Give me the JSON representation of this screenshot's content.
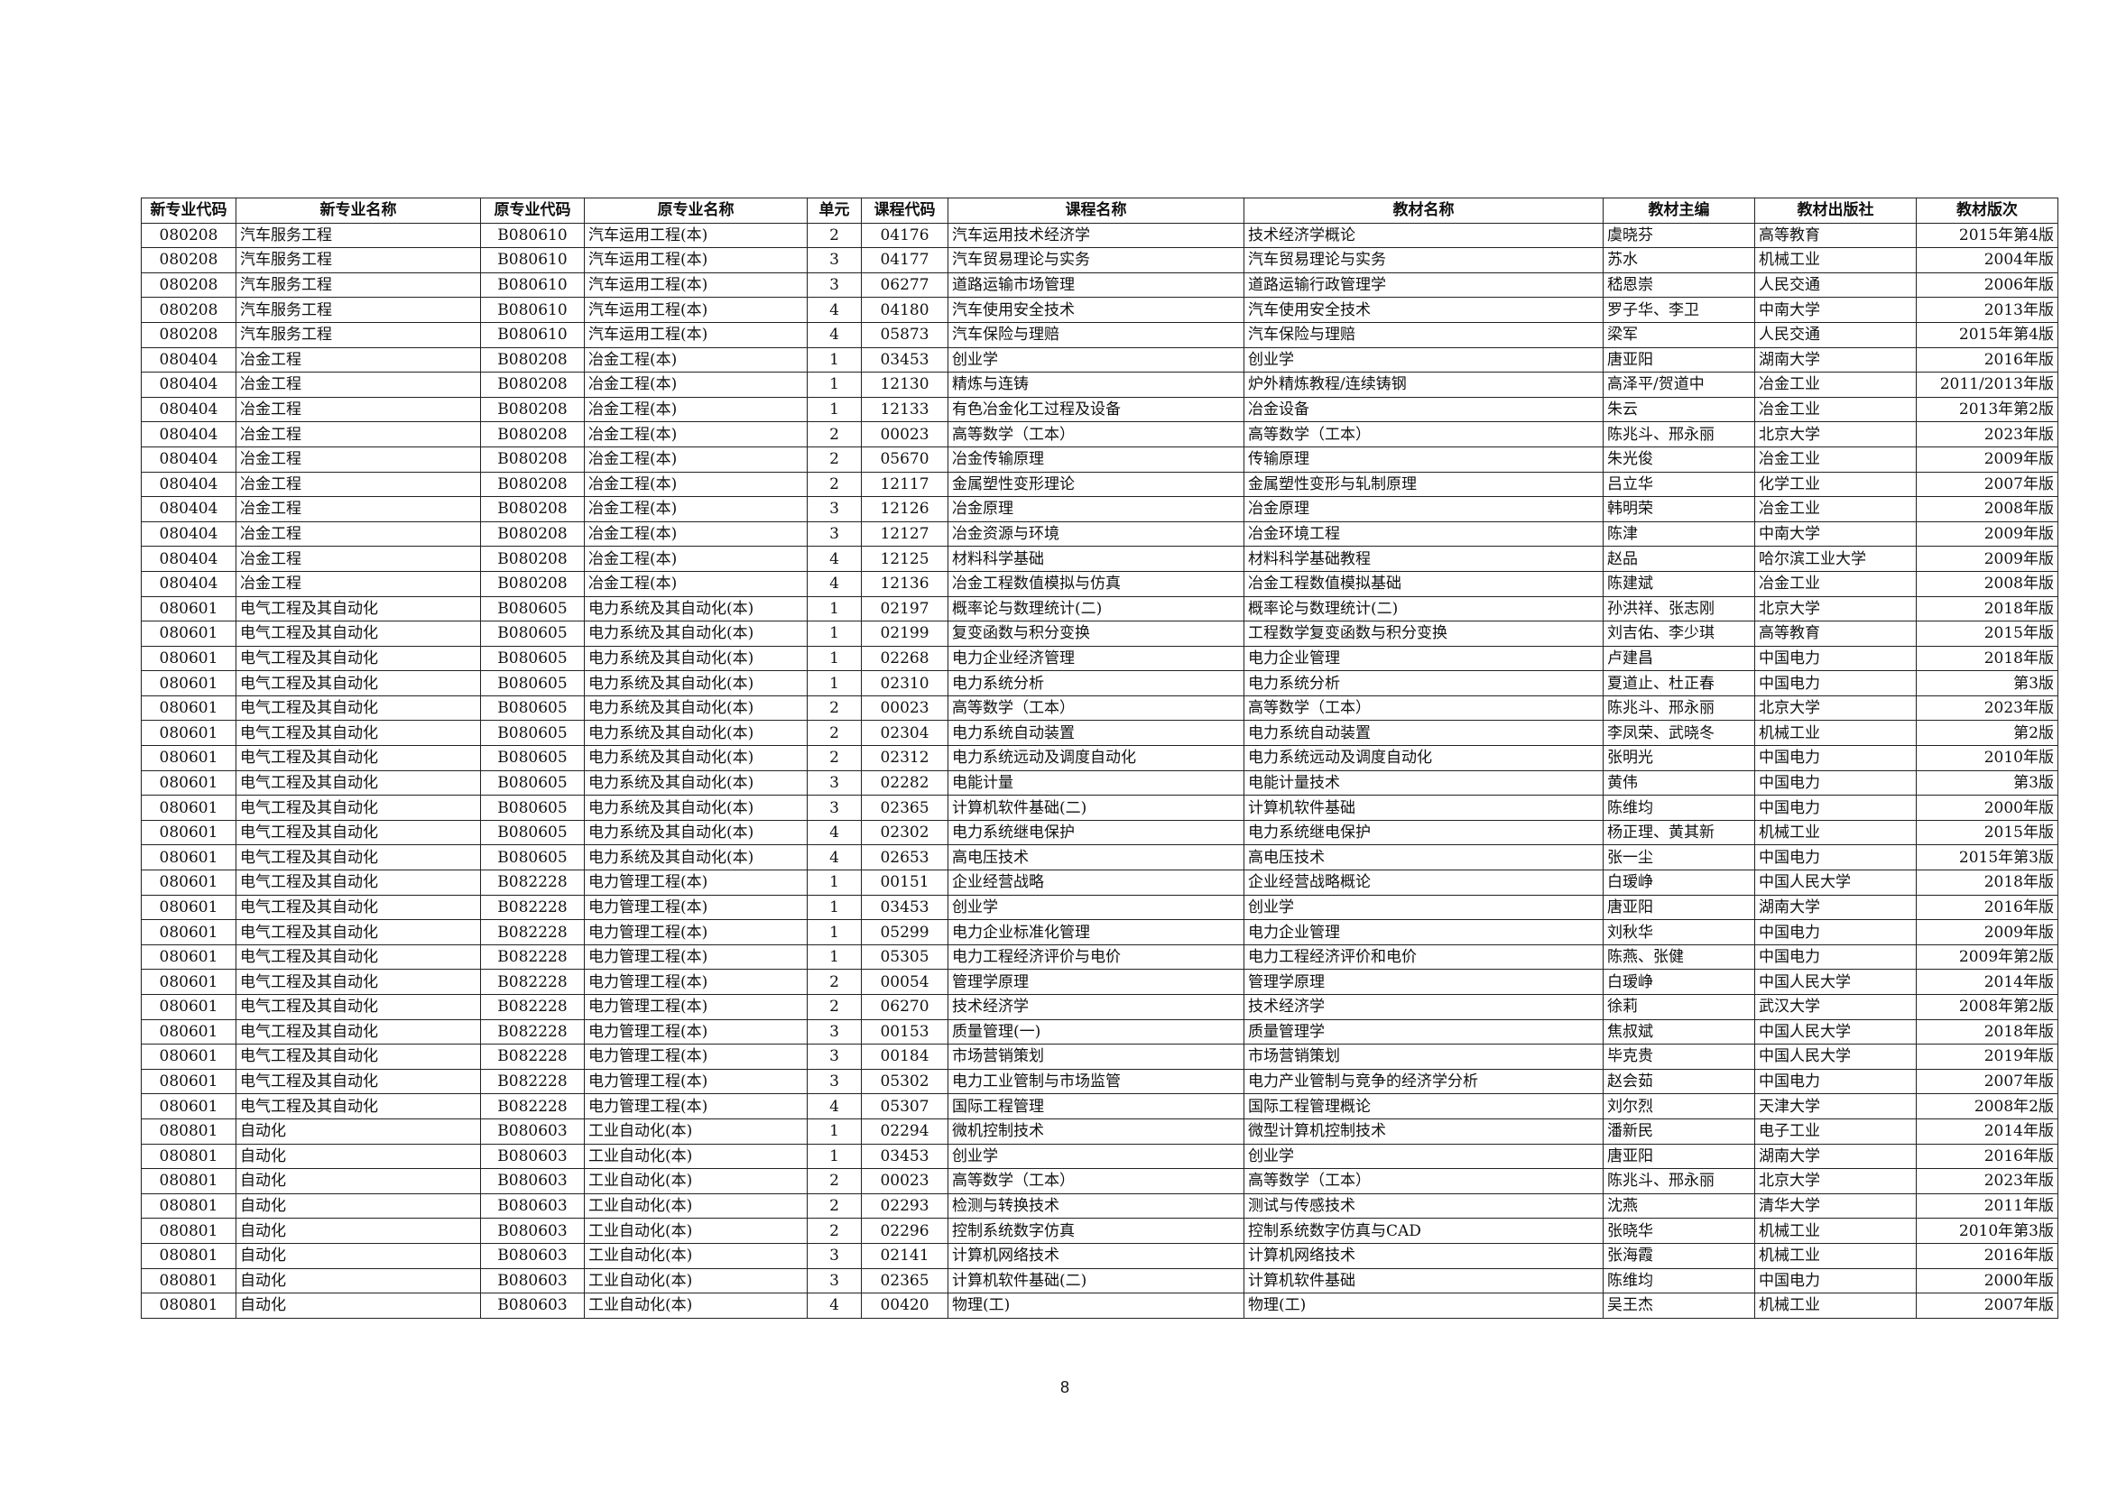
{
  "table": {
    "header": [
      "新专业代码",
      "新专业名称",
      "原专业代码",
      "原专业名称",
      "单元",
      "课程代码",
      "课程名称",
      "教材名称",
      "教材主编",
      "教材出版社",
      "教材版次"
    ],
    "rows": [
      [
        "080208",
        "汽车服务工程",
        "B080610",
        "汽车运用工程(本)",
        "2",
        "04176",
        "汽车运用技术经济学",
        "技术经济学概论",
        "虞晓芬",
        "高等教育",
        "2015年第4版"
      ],
      [
        "080208",
        "汽车服务工程",
        "B080610",
        "汽车运用工程(本)",
        "3",
        "04177",
        "汽车贸易理论与实务",
        "汽车贸易理论与实务",
        "苏水",
        "机械工业",
        "2004年版"
      ],
      [
        "080208",
        "汽车服务工程",
        "B080610",
        "汽车运用工程(本)",
        "3",
        "06277",
        "道路运输市场管理",
        "道路运输行政管理学",
        "嵇恩崇",
        "人民交通",
        "2006年版"
      ],
      [
        "080208",
        "汽车服务工程",
        "B080610",
        "汽车运用工程(本)",
        "4",
        "04180",
        "汽车使用安全技术",
        "汽车使用安全技术",
        "罗子华、李卫",
        "中南大学",
        "2013年版"
      ],
      [
        "080208",
        "汽车服务工程",
        "B080610",
        "汽车运用工程(本)",
        "4",
        "05873",
        "汽车保险与理赔",
        "汽车保险与理赔",
        "梁军",
        "人民交通",
        "2015年第4版"
      ],
      [
        "080404",
        "冶金工程",
        "B080208",
        "冶金工程(本)",
        "1",
        "03453",
        "创业学",
        "创业学",
        "唐亚阳",
        "湖南大学",
        "2016年版"
      ],
      [
        "080404",
        "冶金工程",
        "B080208",
        "冶金工程(本)",
        "1",
        "12130",
        "精炼与连铸",
        "炉外精炼教程/连续铸钢",
        "高泽平/贺道中",
        "冶金工业",
        "2011/2013年版"
      ],
      [
        "080404",
        "冶金工程",
        "B080208",
        "冶金工程(本)",
        "1",
        "12133",
        "有色冶金化工过程及设备",
        "冶金设备",
        "朱云",
        "冶金工业",
        "2013年第2版"
      ],
      [
        "080404",
        "冶金工程",
        "B080208",
        "冶金工程(本)",
        "2",
        "00023",
        "高等数学（工本）",
        "高等数学（工本）",
        "陈兆斗、邢永丽",
        "北京大学",
        "2023年版"
      ],
      [
        "080404",
        "冶金工程",
        "B080208",
        "冶金工程(本)",
        "2",
        "05670",
        "冶金传输原理",
        "传输原理",
        "朱光俊",
        "冶金工业",
        "2009年版"
      ],
      [
        "080404",
        "冶金工程",
        "B080208",
        "冶金工程(本)",
        "2",
        "12117",
        "金属塑性变形理论",
        "金属塑性变形与轧制原理",
        "吕立华",
        "化学工业",
        "2007年版"
      ],
      [
        "080404",
        "冶金工程",
        "B080208",
        "冶金工程(本)",
        "3",
        "12126",
        "冶金原理",
        "冶金原理",
        "韩明荣",
        "冶金工业",
        "2008年版"
      ],
      [
        "080404",
        "冶金工程",
        "B080208",
        "冶金工程(本)",
        "3",
        "12127",
        "冶金资源与环境",
        "冶金环境工程",
        "陈津",
        "中南大学",
        "2009年版"
      ],
      [
        "080404",
        "冶金工程",
        "B080208",
        "冶金工程(本)",
        "4",
        "12125",
        "材料科学基础",
        "材料科学基础教程",
        "赵品",
        "哈尔滨工业大学",
        "2009年版"
      ],
      [
        "080404",
        "冶金工程",
        "B080208",
        "冶金工程(本)",
        "4",
        "12136",
        "冶金工程数值模拟与仿真",
        "冶金工程数值模拟基础",
        "陈建斌",
        "冶金工业",
        "2008年版"
      ],
      [
        "080601",
        "电气工程及其自动化",
        "B080605",
        "电力系统及其自动化(本)",
        "1",
        "02197",
        "概率论与数理统计(二)",
        "概率论与数理统计(二)",
        "孙洪祥、张志刚",
        "北京大学",
        "2018年版"
      ],
      [
        "080601",
        "电气工程及其自动化",
        "B080605",
        "电力系统及其自动化(本)",
        "1",
        "02199",
        "复变函数与积分变换",
        "工程数学复变函数与积分变换",
        "刘吉佑、李少琪",
        "高等教育",
        "2015年版"
      ],
      [
        "080601",
        "电气工程及其自动化",
        "B080605",
        "电力系统及其自动化(本)",
        "1",
        "02268",
        "电力企业经济管理",
        "电力企业管理",
        "卢建昌",
        "中国电力",
        "2018年版"
      ],
      [
        "080601",
        "电气工程及其自动化",
        "B080605",
        "电力系统及其自动化(本)",
        "1",
        "02310",
        "电力系统分析",
        "电力系统分析",
        "夏道止、杜正春",
        "中国电力",
        "第3版"
      ],
      [
        "080601",
        "电气工程及其自动化",
        "B080605",
        "电力系统及其自动化(本)",
        "2",
        "00023",
        "高等数学（工本）",
        "高等数学（工本）",
        "陈兆斗、邢永丽",
        "北京大学",
        "2023年版"
      ],
      [
        "080601",
        "电气工程及其自动化",
        "B080605",
        "电力系统及其自动化(本)",
        "2",
        "02304",
        "电力系统自动装置",
        "电力系统自动装置",
        "李凤荣、武晓冬",
        "机械工业",
        "第2版"
      ],
      [
        "080601",
        "电气工程及其自动化",
        "B080605",
        "电力系统及其自动化(本)",
        "2",
        "02312",
        "电力系统远动及调度自动化",
        "电力系统远动及调度自动化",
        "张明光",
        "中国电力",
        "2010年版"
      ],
      [
        "080601",
        "电气工程及其自动化",
        "B080605",
        "电力系统及其自动化(本)",
        "3",
        "02282",
        "电能计量",
        "电能计量技术",
        "黄伟",
        "中国电力",
        "第3版"
      ],
      [
        "080601",
        "电气工程及其自动化",
        "B080605",
        "电力系统及其自动化(本)",
        "3",
        "02365",
        "计算机软件基础(二)",
        "计算机软件基础",
        "陈维均",
        "中国电力",
        "2000年版"
      ],
      [
        "080601",
        "电气工程及其自动化",
        "B080605",
        "电力系统及其自动化(本)",
        "4",
        "02302",
        "电力系统继电保护",
        "电力系统继电保护",
        "杨正理、黄其新",
        "机械工业",
        "2015年版"
      ],
      [
        "080601",
        "电气工程及其自动化",
        "B080605",
        "电力系统及其自动化(本)",
        "4",
        "02653",
        "高电压技术",
        "高电压技术",
        "张一尘",
        "中国电力",
        "2015年第3版"
      ],
      [
        "080601",
        "电气工程及其自动化",
        "B082228",
        "电力管理工程(本)",
        "1",
        "00151",
        "企业经营战略",
        "企业经营战略概论",
        "白瑷峥",
        "中国人民大学",
        "2018年版"
      ],
      [
        "080601",
        "电气工程及其自动化",
        "B082228",
        "电力管理工程(本)",
        "1",
        "03453",
        "创业学",
        "创业学",
        "唐亚阳",
        "湖南大学",
        "2016年版"
      ],
      [
        "080601",
        "电气工程及其自动化",
        "B082228",
        "电力管理工程(本)",
        "1",
        "05299",
        "电力企业标准化管理",
        "电力企业管理",
        "刘秋华",
        "中国电力",
        "2009年版"
      ],
      [
        "080601",
        "电气工程及其自动化",
        "B082228",
        "电力管理工程(本)",
        "1",
        "05305",
        "电力工程经济评价与电价",
        "电力工程经济评价和电价",
        "陈燕、张健",
        "中国电力",
        "2009年第2版"
      ],
      [
        "080601",
        "电气工程及其自动化",
        "B082228",
        "电力管理工程(本)",
        "2",
        "00054",
        "管理学原理",
        "管理学原理",
        "白瑷峥",
        "中国人民大学",
        "2014年版"
      ],
      [
        "080601",
        "电气工程及其自动化",
        "B082228",
        "电力管理工程(本)",
        "2",
        "06270",
        "技术经济学",
        "技术经济学",
        "徐莉",
        "武汉大学",
        "2008年第2版"
      ],
      [
        "080601",
        "电气工程及其自动化",
        "B082228",
        "电力管理工程(本)",
        "3",
        "00153",
        "质量管理(一)",
        "质量管理学",
        "焦叔斌",
        "中国人民大学",
        "2018年版"
      ],
      [
        "080601",
        "电气工程及其自动化",
        "B082228",
        "电力管理工程(本)",
        "3",
        "00184",
        "市场营销策划",
        "市场营销策划",
        "毕克贵",
        "中国人民大学",
        "2019年版"
      ],
      [
        "080601",
        "电气工程及其自动化",
        "B082228",
        "电力管理工程(本)",
        "3",
        "05302",
        "电力工业管制与市场监管",
        "电力产业管制与竞争的经济学分析",
        "赵会茹",
        "中国电力",
        "2007年版"
      ],
      [
        "080601",
        "电气工程及其自动化",
        "B082228",
        "电力管理工程(本)",
        "4",
        "05307",
        "国际工程管理",
        "国际工程管理概论",
        "刘尔烈",
        "天津大学",
        "2008年2版"
      ],
      [
        "080801",
        "自动化",
        "B080603",
        "工业自动化(本)",
        "1",
        "02294",
        "微机控制技术",
        "微型计算机控制技术",
        "潘新民",
        "电子工业",
        "2014年版"
      ],
      [
        "080801",
        "自动化",
        "B080603",
        "工业自动化(本)",
        "1",
        "03453",
        "创业学",
        "创业学",
        "唐亚阳",
        "湖南大学",
        "2016年版"
      ],
      [
        "080801",
        "自动化",
        "B080603",
        "工业自动化(本)",
        "2",
        "00023",
        "高等数学（工本）",
        "高等数学（工本）",
        "陈兆斗、邢永丽",
        "北京大学",
        "2023年版"
      ],
      [
        "080801",
        "自动化",
        "B080603",
        "工业自动化(本)",
        "2",
        "02293",
        "检测与转换技术",
        "测试与传感技术",
        "沈燕",
        "清华大学",
        "2011年版"
      ],
      [
        "080801",
        "自动化",
        "B080603",
        "工业自动化(本)",
        "2",
        "02296",
        "控制系统数字仿真",
        "控制系统数字仿真与CAD",
        "张晓华",
        "机械工业",
        "2010年第3版"
      ],
      [
        "080801",
        "自动化",
        "B080603",
        "工业自动化(本)",
        "3",
        "02141",
        "计算机网络技术",
        "计算机网络技术",
        "张海霞",
        "机械工业",
        "2016年版"
      ],
      [
        "080801",
        "自动化",
        "B080603",
        "工业自动化(本)",
        "3",
        "02365",
        "计算机软件基础(二)",
        "计算机软件基础",
        "陈维均",
        "中国电力",
        "2000年版"
      ],
      [
        "080801",
        "自动化",
        "B080603",
        "工业自动化(本)",
        "4",
        "00420",
        "物理(工)",
        "物理(工)",
        "吴王杰",
        "机械工业",
        "2007年版"
      ]
    ]
  },
  "footer": {
    "page_number": "8"
  }
}
